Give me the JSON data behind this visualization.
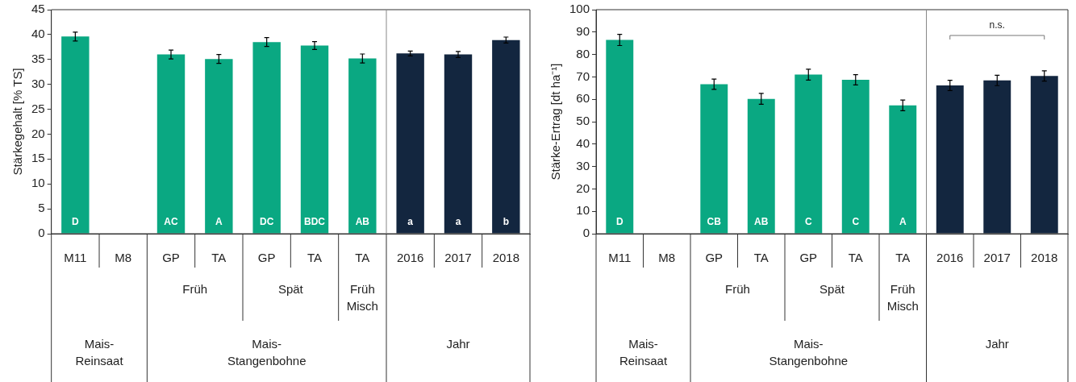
{
  "chart_data": [
    {
      "type": "bar",
      "ylabel": "Stärkegehalt [% TS]",
      "categories": [
        "M11",
        "M8",
        "GP",
        "TA",
        "GP",
        "TA",
        "TA",
        "2016",
        "2017",
        "2018"
      ],
      "values": [
        39.6,
        null,
        36.0,
        35.1,
        38.5,
        37.8,
        35.2,
        36.2,
        36.0,
        38.9
      ],
      "errors": [
        0.9,
        null,
        0.9,
        0.9,
        0.9,
        0.8,
        0.9,
        0.5,
        0.6,
        0.6
      ],
      "value_labels": [
        "D",
        null,
        "AC",
        "A",
        "DC",
        "BDC",
        "AB",
        "a",
        "a",
        "b"
      ],
      "colors": [
        "#0aa882",
        "#0aa882",
        "#0aa882",
        "#0aa882",
        "#0aa882",
        "#0aa882",
        "#0aa882",
        "#13263f",
        "#13263f",
        "#13263f"
      ],
      "ylim": [
        0,
        45
      ],
      "yticks": [
        0,
        5,
        10,
        15,
        20,
        25,
        30,
        35,
        40,
        45
      ],
      "annotations": [
        "Früh",
        "Spät",
        "Früh Misch",
        "Mais-Reinsaat",
        "Mais-Stangenbohne",
        "Jahr"
      ]
    },
    {
      "type": "bar",
      "ylabel": "Stärke-Ertrag [dt ha⁻¹]",
      "categories": [
        "M11",
        "M8",
        "GP",
        "TA",
        "GP",
        "TA",
        "TA",
        "2016",
        "2017",
        "2018"
      ],
      "values": [
        86.5,
        null,
        66.7,
        60.2,
        71.0,
        68.7,
        57.3,
        66.2,
        68.4,
        70.4
      ],
      "errors": [
        2.5,
        null,
        2.3,
        2.4,
        2.4,
        2.3,
        2.4,
        2.3,
        2.3,
        2.3
      ],
      "value_labels": [
        "D",
        null,
        "CB",
        "AB",
        "C",
        "C",
        "A",
        null,
        null,
        null
      ],
      "colors": [
        "#0aa882",
        "#0aa882",
        "#0aa882",
        "#0aa882",
        "#0aa882",
        "#0aa882",
        "#0aa882",
        "#13263f",
        "#13263f",
        "#13263f"
      ],
      "ylim": [
        0,
        100
      ],
      "yticks": [
        0,
        10,
        20,
        30,
        40,
        50,
        60,
        70,
        80,
        90,
        100
      ],
      "annotations": [
        "Früh",
        "Spät",
        "Früh Misch",
        "Mais-Reinsaat",
        "Mais-Stangenbohne",
        "Jahr",
        "n.s."
      ]
    }
  ]
}
